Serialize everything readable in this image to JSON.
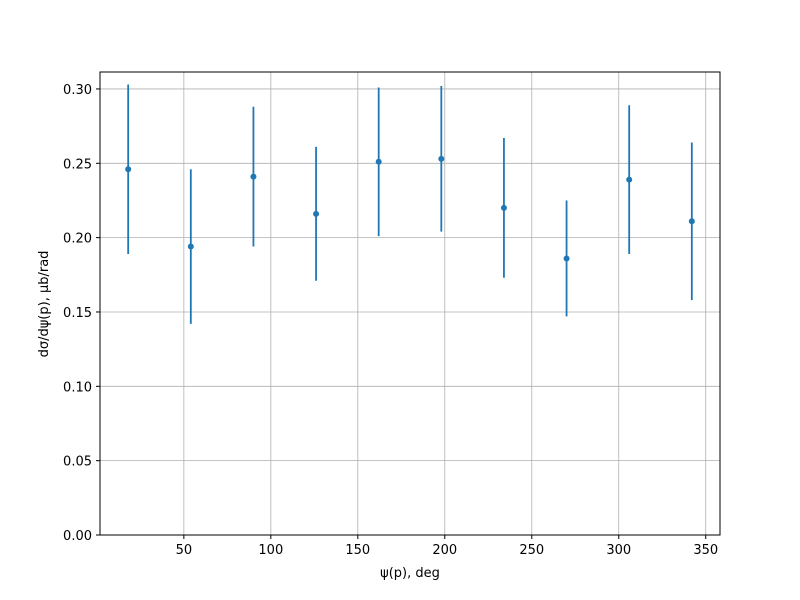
{
  "chart_data": {
    "type": "errorbar",
    "xlabel": "ψ(p), deg",
    "ylabel": "dσ/dψ(p), μb/rad",
    "x": [
      18,
      54,
      90,
      126,
      162,
      198,
      234,
      270,
      306,
      342
    ],
    "values": [
      0.246,
      0.194,
      0.241,
      0.216,
      0.251,
      0.253,
      0.22,
      0.186,
      0.239,
      0.211
    ],
    "errors": [
      0.057,
      0.052,
      0.047,
      0.045,
      0.05,
      0.049,
      0.047,
      0.039,
      0.05,
      0.053
    ],
    "color": "#1f77b4",
    "xlim": [
      1.8,
      358.2
    ],
    "xticks": [
      50,
      100,
      150,
      200,
      250,
      300,
      350
    ],
    "ylim": [
      0,
      0.3114
    ],
    "yticks": [
      {
        "value": 0,
        "label": "0.00"
      },
      {
        "value": 0.05,
        "label": "0.05"
      },
      {
        "value": 0.1,
        "label": "0.10"
      },
      {
        "value": 0.15,
        "label": "0.15"
      },
      {
        "value": 0.2,
        "label": "0.20"
      },
      {
        "value": 0.25,
        "label": "0.25"
      },
      {
        "value": 0.3,
        "label": "0.30"
      }
    ],
    "grid": true
  }
}
